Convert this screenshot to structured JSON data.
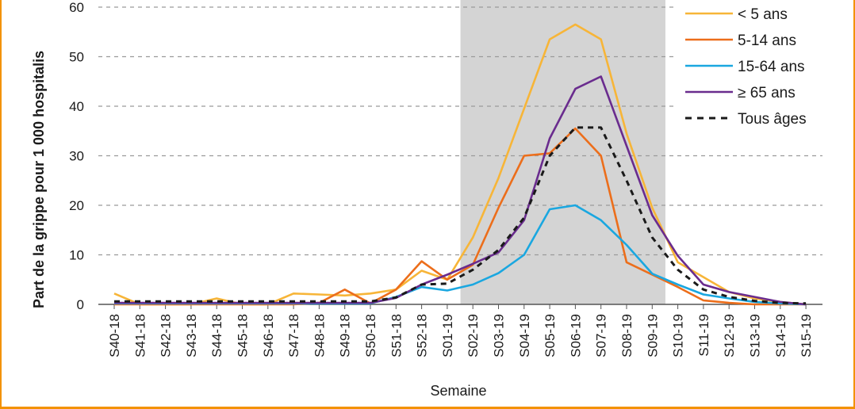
{
  "chart_data": {
    "type": "line",
    "xlabel": "Semaine",
    "ylabel": "Part de la grippe pour 1 000 hospitalis",
    "ylim": [
      0,
      60
    ],
    "yticks": [
      0,
      10,
      20,
      30,
      40,
      50,
      60
    ],
    "grid": "horizontal-dashed",
    "legend_position": "top-right",
    "shaded_region": {
      "from": "S02-19",
      "to": "S09-19",
      "color": "#d4d4d4"
    },
    "categories": [
      "S40-18",
      "S41-18",
      "S42-18",
      "S43-18",
      "S44-18",
      "S45-18",
      "S46-18",
      "S47-18",
      "S48-18",
      "S49-18",
      "S50-18",
      "S51-18",
      "S52-18",
      "S01-19",
      "S02-19",
      "S03-19",
      "S04-19",
      "S05-19",
      "S06-19",
      "S07-19",
      "S08-19",
      "S09-19",
      "S10-19",
      "S11-19",
      "S12-19",
      "S13-19",
      "S14-19",
      "S15-19"
    ],
    "series": [
      {
        "name": "< 5 ans",
        "color": "#f7b538",
        "dash": false,
        "values": [
          2.2,
          0,
          0,
          0,
          1.2,
          0,
          0,
          2.2,
          2,
          1.8,
          2.2,
          3,
          6.8,
          5,
          13.5,
          25.5,
          39.5,
          53.5,
          56.5,
          53.5,
          34.5,
          19.5,
          8.5,
          5.5,
          2.5,
          1.2,
          0.5,
          0
        ]
      },
      {
        "name": "5-14 ans",
        "color": "#ec6e1b",
        "dash": false,
        "values": [
          0,
          0,
          0,
          0,
          0,
          0,
          0,
          0,
          0.3,
          3,
          0.2,
          3,
          8.7,
          5,
          8,
          19.5,
          30,
          30.5,
          35.5,
          30,
          8.5,
          6,
          3.5,
          0.8,
          0.3,
          0,
          0,
          0
        ]
      },
      {
        "name": "15-64 ans",
        "color": "#1aa7e0",
        "dash": false,
        "values": [
          0.2,
          0.2,
          0.2,
          0.2,
          0.2,
          0.2,
          0.2,
          0.2,
          0.2,
          0.2,
          0.2,
          1.5,
          3.5,
          2.8,
          4,
          6.3,
          10,
          19.2,
          20,
          17,
          12,
          6.2,
          4,
          2,
          1.2,
          0.5,
          0.2,
          0
        ]
      },
      {
        "name": "≥ 65 ans",
        "color": "#6a2c8e",
        "dash": false,
        "values": [
          0.3,
          0.3,
          0.3,
          0.3,
          0.3,
          0.3,
          0.3,
          0.3,
          0.3,
          0.3,
          0.3,
          1.3,
          4,
          6,
          8.2,
          10.5,
          17,
          33.5,
          43.5,
          46,
          32,
          18,
          9.8,
          4,
          2.5,
          1.5,
          0.5,
          0
        ]
      },
      {
        "name": "Tous âges",
        "color": "#1a1a1a",
        "dash": true,
        "values": [
          0.6,
          0.6,
          0.6,
          0.6,
          0.6,
          0.6,
          0.6,
          0.6,
          0.6,
          0.6,
          0.6,
          1.4,
          4,
          4.2,
          7,
          11,
          17.5,
          30,
          35.7,
          35.7,
          25,
          13.5,
          7,
          3,
          1.5,
          0.7,
          0.3,
          0.2
        ]
      }
    ]
  }
}
